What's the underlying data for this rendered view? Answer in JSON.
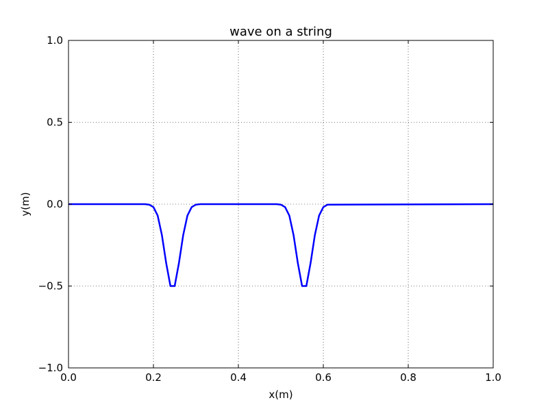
{
  "chart_data": {
    "type": "line",
    "title": "wave on a string",
    "xlabel": "x(m)",
    "ylabel": "y(m)",
    "xlim": [
      0.0,
      1.0
    ],
    "ylim": [
      -1.0,
      1.0
    ],
    "grid": true,
    "legend": "none",
    "xticks": [
      "0.0",
      "0.2",
      "0.4",
      "0.6",
      "0.8",
      "1.0"
    ],
    "yticks": [
      "1.0",
      "0.5",
      "0.0",
      "−0.5",
      "−1.0"
    ],
    "series": [
      {
        "color": "#0000ff",
        "x": [
          0.0,
          0.18,
          0.19,
          0.2,
          0.21,
          0.22,
          0.23,
          0.24,
          0.25,
          0.26,
          0.27,
          0.28,
          0.29,
          0.3,
          0.31,
          0.49,
          0.5,
          0.51,
          0.52,
          0.53,
          0.54,
          0.55,
          0.56,
          0.57,
          0.58,
          0.59,
          0.6,
          0.61,
          1.0
        ],
        "y": [
          0.0,
          0.0,
          -0.003,
          -0.018,
          -0.07,
          -0.19,
          -0.36,
          -0.5,
          -0.5,
          -0.36,
          -0.19,
          -0.07,
          -0.018,
          -0.003,
          0.0,
          0.0,
          -0.003,
          -0.018,
          -0.07,
          -0.19,
          -0.36,
          -0.5,
          -0.5,
          -0.36,
          -0.19,
          -0.07,
          -0.018,
          -0.003,
          0.0
        ]
      }
    ]
  }
}
